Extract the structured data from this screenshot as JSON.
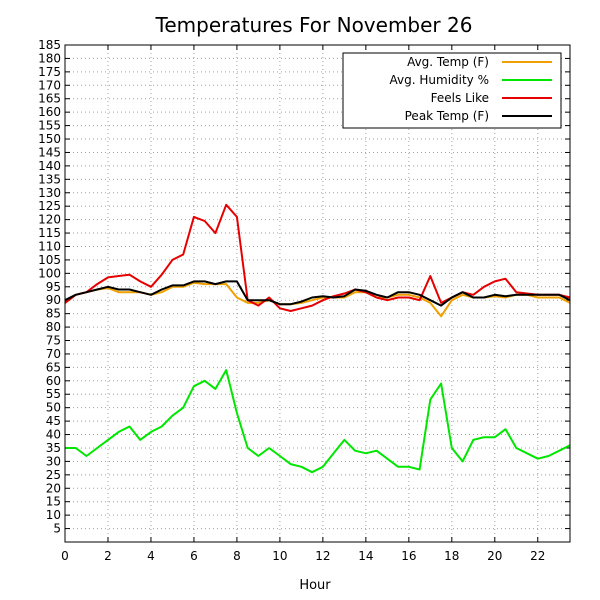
{
  "chart_data": {
    "type": "line",
    "title": "Temperatures For November 26",
    "xlabel": "Hour",
    "ylabel": "",
    "xlim": [
      0,
      23.5
    ],
    "ylim": [
      0,
      185
    ],
    "xticks": [
      0,
      2,
      4,
      6,
      8,
      10,
      12,
      14,
      16,
      18,
      20,
      22
    ],
    "yticks": [
      5,
      10,
      15,
      20,
      25,
      30,
      35,
      40,
      45,
      50,
      55,
      60,
      65,
      70,
      75,
      80,
      85,
      90,
      95,
      100,
      105,
      110,
      115,
      120,
      125,
      130,
      135,
      140,
      145,
      150,
      155,
      160,
      165,
      170,
      175,
      180,
      185
    ],
    "grid": true,
    "legend_position": "top-right",
    "x": [
      0,
      0.5,
      1,
      1.5,
      2,
      2.5,
      3,
      3.5,
      4,
      4.5,
      5,
      5.5,
      6,
      6.5,
      7,
      7.5,
      8,
      8.5,
      9,
      9.5,
      10,
      10.5,
      11,
      11.5,
      12,
      12.5,
      13,
      13.5,
      14,
      14.5,
      15,
      15.5,
      16,
      16.5,
      17,
      17.5,
      18,
      18.5,
      19,
      19.5,
      20,
      20.5,
      21,
      21.5,
      22,
      22.5,
      23,
      23.5
    ],
    "series": [
      {
        "name": "Avg. Temp (F)",
        "color": "#f0a000",
        "values": [
          89,
          92,
          93,
          94,
          94.5,
          93,
          93,
          93,
          92,
          93,
          95,
          95,
          96.5,
          96,
          96,
          96,
          91,
          89,
          89,
          90,
          88.5,
          88.5,
          89,
          90,
          91,
          91,
          91,
          93,
          93,
          91,
          91,
          92,
          92,
          91,
          89,
          84,
          90,
          92,
          91,
          91,
          91.5,
          91,
          92,
          92,
          91,
          91,
          91,
          89
        ]
      },
      {
        "name": "Avg. Humidity %",
        "color": "#00e600",
        "values": [
          35,
          35,
          32,
          35,
          38,
          41,
          43,
          38,
          41,
          43,
          47,
          50,
          58,
          60,
          57,
          64,
          48,
          35,
          32,
          35,
          32,
          29,
          28,
          26,
          28,
          33,
          38,
          34,
          33,
          34,
          31,
          28,
          28,
          27,
          53,
          59,
          35,
          30,
          38,
          39,
          39,
          42,
          35,
          33,
          31,
          32,
          34,
          36
        ]
      },
      {
        "name": "Feels Like",
        "color": "#e60000",
        "values": [
          89,
          92,
          93,
          96,
          98.5,
          99,
          99.5,
          97,
          95,
          99.5,
          105,
          107,
          121,
          119.5,
          115,
          125.5,
          121,
          90,
          88,
          91,
          87,
          86,
          87,
          88,
          90,
          91.5,
          92.5,
          94,
          93,
          91,
          90,
          91,
          91,
          90,
          99,
          89,
          91,
          93,
          92,
          95,
          97,
          98,
          93,
          92.5,
          92,
          92,
          92,
          91
        ]
      },
      {
        "name": "Peak Temp (F)",
        "color": "#000000",
        "values": [
          90,
          92,
          93,
          94,
          95,
          94,
          94,
          93,
          92,
          94,
          95.5,
          95.5,
          97,
          97,
          96,
          97,
          97,
          90,
          90,
          90,
          88.5,
          88.5,
          89.5,
          91,
          91.5,
          91,
          91.5,
          94,
          93.5,
          92,
          91,
          93,
          93,
          92,
          90,
          88,
          91,
          93,
          91,
          91,
          92,
          91.5,
          92,
          92,
          92,
          92,
          92,
          90
        ]
      }
    ]
  }
}
